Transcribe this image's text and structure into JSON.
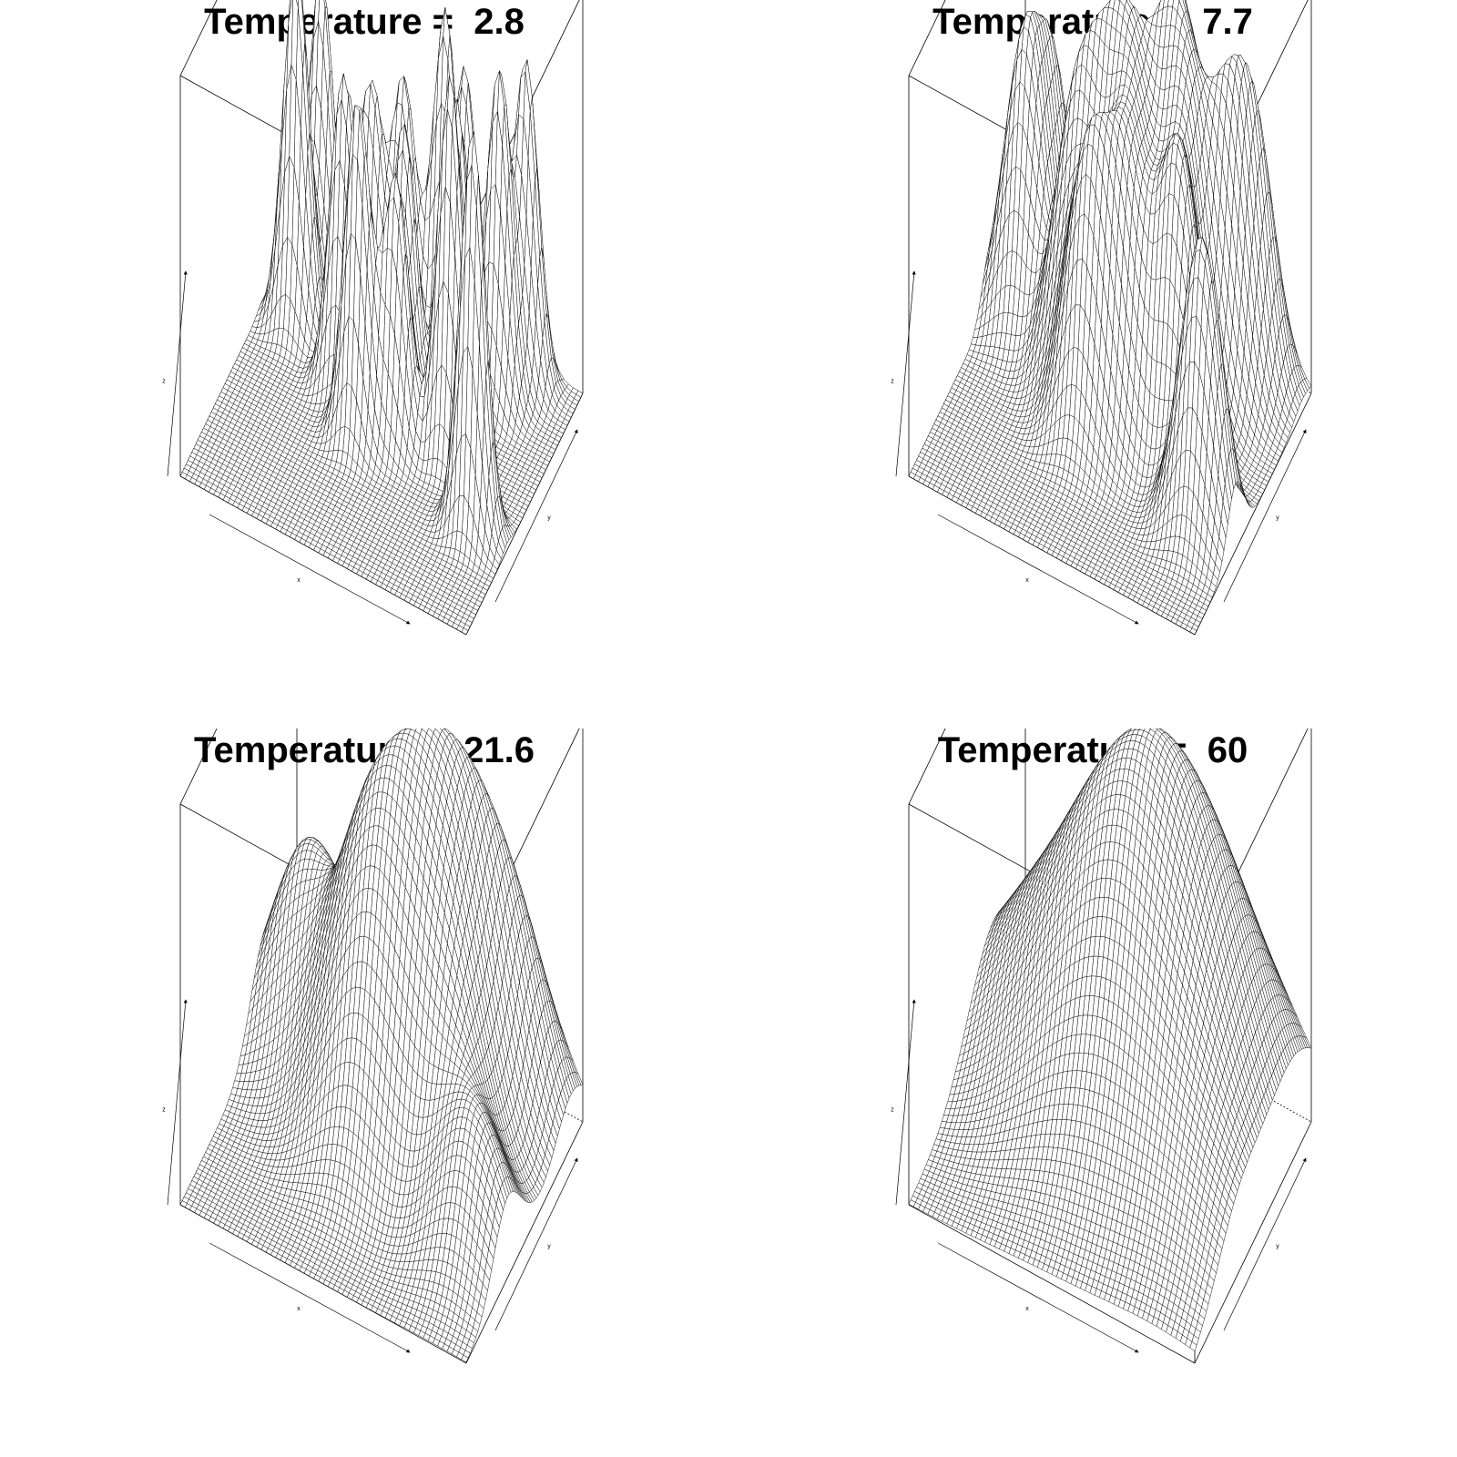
{
  "figure": {
    "layout": "2x2",
    "background": "#ffffff",
    "line_color": "#000000"
  },
  "chart_data": [
    {
      "type": "surface",
      "title": "Temperature =  2.8",
      "temperature": 2.8,
      "xlabel": "x",
      "ylabel": "y",
      "zlabel": "z",
      "grid": false
    },
    {
      "type": "surface",
      "title": "Temperature =  7.7",
      "temperature": 7.7,
      "xlabel": "x",
      "ylabel": "y",
      "zlabel": "z",
      "grid": false
    },
    {
      "type": "surface",
      "title": "Temperature =  21.6",
      "temperature": 21.6,
      "xlabel": "x",
      "ylabel": "y",
      "zlabel": "z",
      "grid": false
    },
    {
      "type": "surface",
      "title": "Temperature =  60",
      "temperature": 60,
      "xlabel": "x",
      "ylabel": "y",
      "zlabel": "z",
      "grid": false
    }
  ]
}
